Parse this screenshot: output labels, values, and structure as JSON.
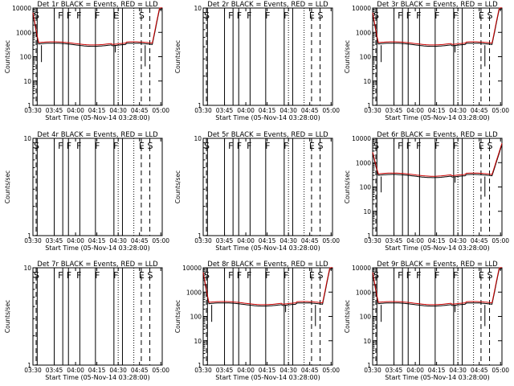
{
  "figure": {
    "background": "#ffffff",
    "axis_color": "#000000",
    "events_color": "#000000",
    "lld_color": "#cc0000"
  },
  "chart_data": [
    {
      "type": "line",
      "title": "Det 1r BLACK = Events, RED = LLD",
      "xlabel": "Start Time (05-Nov-14 03:28:00)",
      "ylabel": "Counts/sec",
      "scale": "log",
      "ylim": [
        1,
        10000
      ],
      "xticks": [
        "03:30",
        "03:45",
        "04:00",
        "04:15",
        "04:30",
        "04:45",
        "05:00"
      ],
      "yticks": [
        "1",
        "10",
        "100",
        "1000",
        "10000"
      ],
      "flags": [
        "S",
        "F",
        "F",
        "F",
        "F",
        "E",
        "S"
      ],
      "series": [
        {
          "name": "Events",
          "color": "#000000"
        },
        {
          "name": "LLD",
          "color": "#cc0000"
        }
      ],
      "has_curve": true,
      "profile": "full"
    },
    {
      "type": "line",
      "title": "Det 2r BLACK = Events, RED = LLD",
      "xlabel": "Start Time (05-Nov-14 03:28:00)",
      "ylabel": "Counts/sec",
      "scale": "log",
      "ylim": [
        1,
        10
      ],
      "xticks": [
        "03:30",
        "03:45",
        "04:00",
        "04:15",
        "04:30",
        "04:45",
        "05:00"
      ],
      "yticks": [
        "1",
        "10"
      ],
      "flags": [
        "S",
        "F",
        "F",
        "F",
        "F",
        "F",
        "E",
        "S"
      ],
      "series": [
        {
          "name": "Events",
          "color": "#000000"
        },
        {
          "name": "LLD",
          "color": "#cc0000"
        }
      ],
      "has_curve": false
    },
    {
      "type": "line",
      "title": "Det 3r BLACK = Events, RED = LLD",
      "xlabel": "Start Time (05-Nov-14 03:28:00)",
      "ylabel": "Counts/sec",
      "scale": "log",
      "ylim": [
        1,
        10000
      ],
      "xticks": [
        "03:30",
        "03:45",
        "04:00",
        "04:15",
        "04:30",
        "04:45",
        "05:00"
      ],
      "yticks": [
        "1",
        "10",
        "100",
        "1000",
        "10000"
      ],
      "flags": [
        "S",
        "F",
        "F",
        "F",
        "F",
        "F",
        "E",
        "S"
      ],
      "series": [
        {
          "name": "Events",
          "color": "#000000"
        },
        {
          "name": "LLD",
          "color": "#cc0000"
        }
      ],
      "has_curve": true,
      "profile": "full"
    },
    {
      "type": "line",
      "title": "Det 4r BLACK = Events, RED = LLD",
      "xlabel": "Start Time (05-Nov-14 03:28:00)",
      "ylabel": "Counts/sec",
      "scale": "log",
      "ylim": [
        1,
        10
      ],
      "xticks": [
        "03:30",
        "03:45",
        "04:00",
        "04:15",
        "04:30",
        "04:45",
        "05:00"
      ],
      "yticks": [
        "1",
        "10"
      ],
      "flags": [
        "S",
        "F",
        "F",
        "F",
        "F",
        "F",
        "E",
        "S"
      ],
      "series": [
        {
          "name": "Events",
          "color": "#000000"
        },
        {
          "name": "LLD",
          "color": "#cc0000"
        }
      ],
      "has_curve": false
    },
    {
      "type": "line",
      "title": "Det 5r BLACK = Events, RED = LLD",
      "xlabel": "Start Time (05-Nov-14 03:28:00)",
      "ylabel": "Counts/sec",
      "scale": "log",
      "ylim": [
        1,
        10
      ],
      "xticks": [
        "03:30",
        "03:45",
        "04:00",
        "04:15",
        "04:30",
        "04:45",
        "05:00"
      ],
      "yticks": [
        "1",
        "10"
      ],
      "flags": [
        "S",
        "F",
        "F",
        "F",
        "F",
        "F",
        "E",
        "S"
      ],
      "series": [
        {
          "name": "Events",
          "color": "#000000"
        },
        {
          "name": "LLD",
          "color": "#cc0000"
        }
      ],
      "has_curve": false
    },
    {
      "type": "line",
      "title": "Det 6r BLACK = Events, RED = LLD",
      "xlabel": "Start Time (05-Nov-14 03:28:00)",
      "ylabel": "Counts/sec",
      "scale": "log",
      "ylim": [
        1,
        10000
      ],
      "xticks": [
        "03:30",
        "03:45",
        "04:00",
        "04:15",
        "04:30",
        "04:45",
        "05:00"
      ],
      "yticks": [
        "1",
        "10",
        "100",
        "1000",
        "10000"
      ],
      "flags": [
        "S",
        "F",
        "F",
        "F",
        "F",
        "F",
        "E",
        "S"
      ],
      "series": [
        {
          "name": "Events",
          "color": "#000000"
        },
        {
          "name": "LLD",
          "color": "#cc0000"
        }
      ],
      "has_curve": true,
      "profile": "low"
    },
    {
      "type": "line",
      "title": "Det 7r BLACK = Events, RED = LLD",
      "xlabel": "Start Time (05-Nov-14 03:28:00)",
      "ylabel": "Counts/sec",
      "scale": "log",
      "ylim": [
        1,
        10
      ],
      "xticks": [
        "03:30",
        "03:45",
        "04:00",
        "04:15",
        "04:30",
        "04:45",
        "05:00"
      ],
      "yticks": [
        "1",
        "10"
      ],
      "flags": [
        "S",
        "F",
        "F",
        "F",
        "F",
        "F",
        "E",
        "S"
      ],
      "series": [
        {
          "name": "Events",
          "color": "#000000"
        },
        {
          "name": "LLD",
          "color": "#cc0000"
        }
      ],
      "has_curve": false
    },
    {
      "type": "line",
      "title": "Det 8r BLACK = Events, RED = LLD",
      "xlabel": "Start Time (05-Nov-14 03:28:00)",
      "ylabel": "Counts/sec",
      "scale": "log",
      "ylim": [
        1,
        10000
      ],
      "xticks": [
        "03:30",
        "03:45",
        "04:00",
        "04:15",
        "04:30",
        "04:45",
        "05:00"
      ],
      "yticks": [
        "1",
        "10",
        "100",
        "1000",
        "10000"
      ],
      "flags": [
        "S",
        "F",
        "F",
        "F",
        "F",
        "F",
        "E",
        "S"
      ],
      "series": [
        {
          "name": "Events",
          "color": "#000000"
        },
        {
          "name": "LLD",
          "color": "#cc0000"
        }
      ],
      "has_curve": true,
      "profile": "full"
    },
    {
      "type": "line",
      "title": "Det 9r BLACK = Events, RED = LLD",
      "xlabel": "Start Time (05-Nov-14 03:28:00)",
      "ylabel": "Counts/sec",
      "scale": "log",
      "ylim": [
        1,
        10000
      ],
      "xticks": [
        "03:30",
        "03:45",
        "04:00",
        "04:15",
        "04:30",
        "04:45",
        "05:00"
      ],
      "yticks": [
        "1",
        "10",
        "100",
        "1000",
        "10000"
      ],
      "flags": [
        "S",
        "F",
        "F",
        "F",
        "F",
        "F",
        "E",
        "S"
      ],
      "series": [
        {
          "name": "Events",
          "color": "#000000"
        },
        {
          "name": "LLD",
          "color": "#cc0000"
        }
      ],
      "has_curve": true,
      "profile": "full"
    }
  ]
}
